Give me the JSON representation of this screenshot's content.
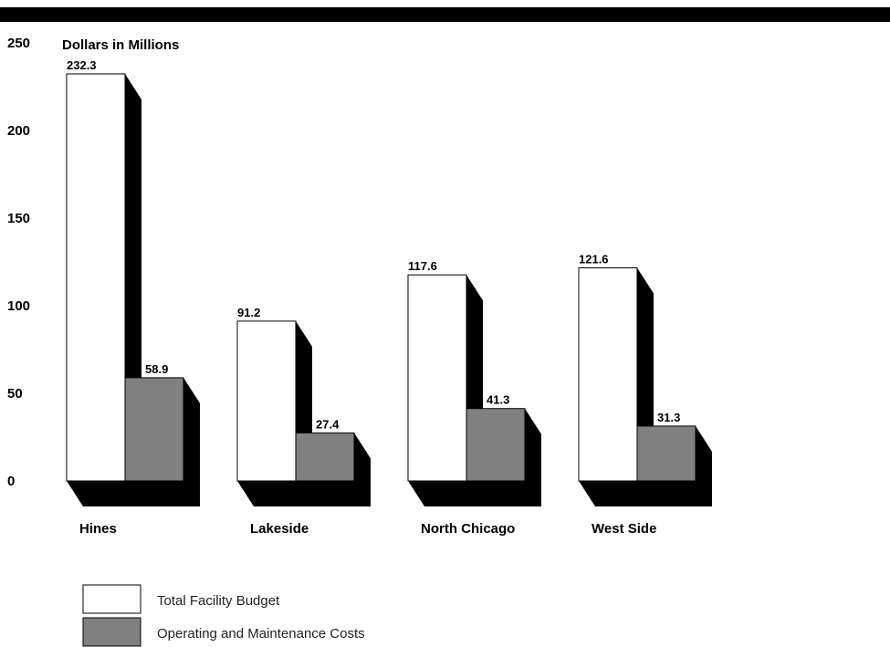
{
  "chart_data": {
    "type": "bar",
    "ylabel": "Dollars in Millions",
    "ylim": [
      0,
      250
    ],
    "yticks": [
      "0",
      "50",
      "100",
      "150",
      "200",
      "250"
    ],
    "categories": [
      "Hines",
      "Lakeside",
      "North Chicago",
      "West Side"
    ],
    "series": [
      {
        "name": "Total Facility Budget",
        "color": "#ffffff",
        "values": [
          232.3,
          91.2,
          117.6,
          121.6
        ],
        "labels": [
          "232.3",
          "91.2",
          "117.6",
          "121.6"
        ]
      },
      {
        "name": "Operating and Maintenance Costs",
        "color": "#808080",
        "values": [
          58.9,
          27.4,
          41.3,
          31.3
        ],
        "labels": [
          "58.9",
          "27.4",
          "41.3",
          "31.3"
        ]
      }
    ],
    "style": "3d-bar-with-black-shadow",
    "grid": false,
    "legend_position": "bottom-left"
  }
}
